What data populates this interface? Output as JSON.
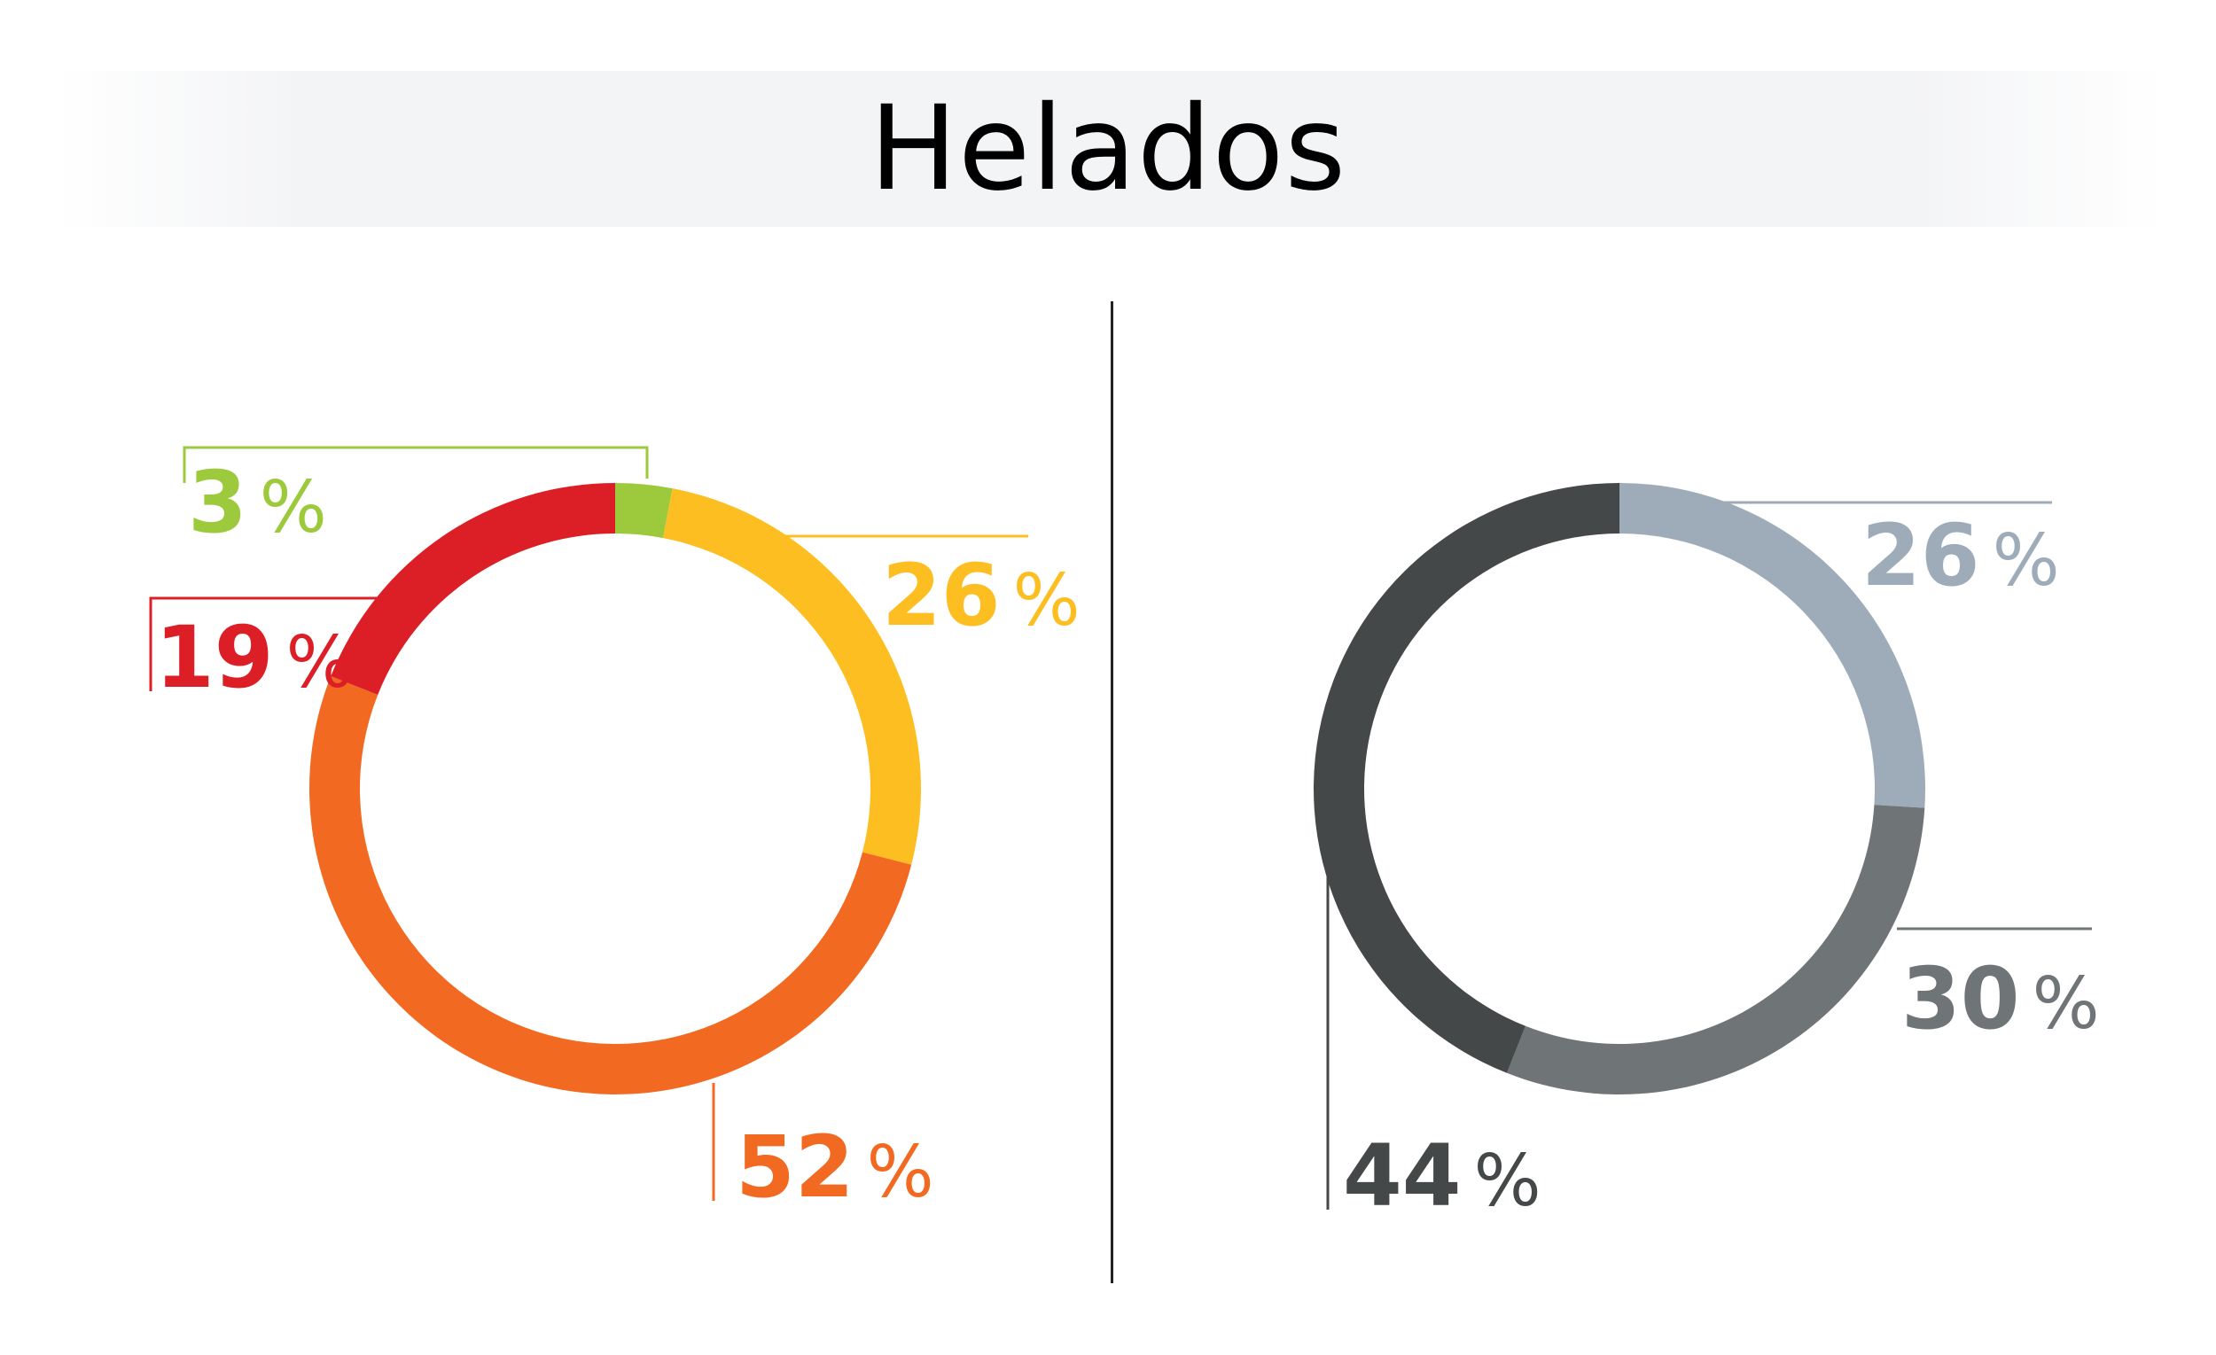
{
  "title": "Helados",
  "chart_data": [
    {
      "type": "pie",
      "variant": "donut",
      "title": "",
      "slices": [
        {
          "value": 3,
          "color": "#9dca3c",
          "label": "3"
        },
        {
          "value": 26,
          "color": "#fdbe21",
          "label": "26"
        },
        {
          "value": 52,
          "color": "#f26a22",
          "label": "52"
        },
        {
          "value": 19,
          "color": "#dc1f26",
          "label": "19"
        }
      ],
      "unit": "%"
    },
    {
      "type": "pie",
      "variant": "donut",
      "title": "",
      "slices": [
        {
          "value": 26,
          "color": "#9eacba",
          "label": "26"
        },
        {
          "value": 30,
          "color": "#6f7477",
          "label": "30"
        },
        {
          "value": 44,
          "color": "#444849",
          "label": "44"
        }
      ],
      "unit": "%"
    }
  ]
}
